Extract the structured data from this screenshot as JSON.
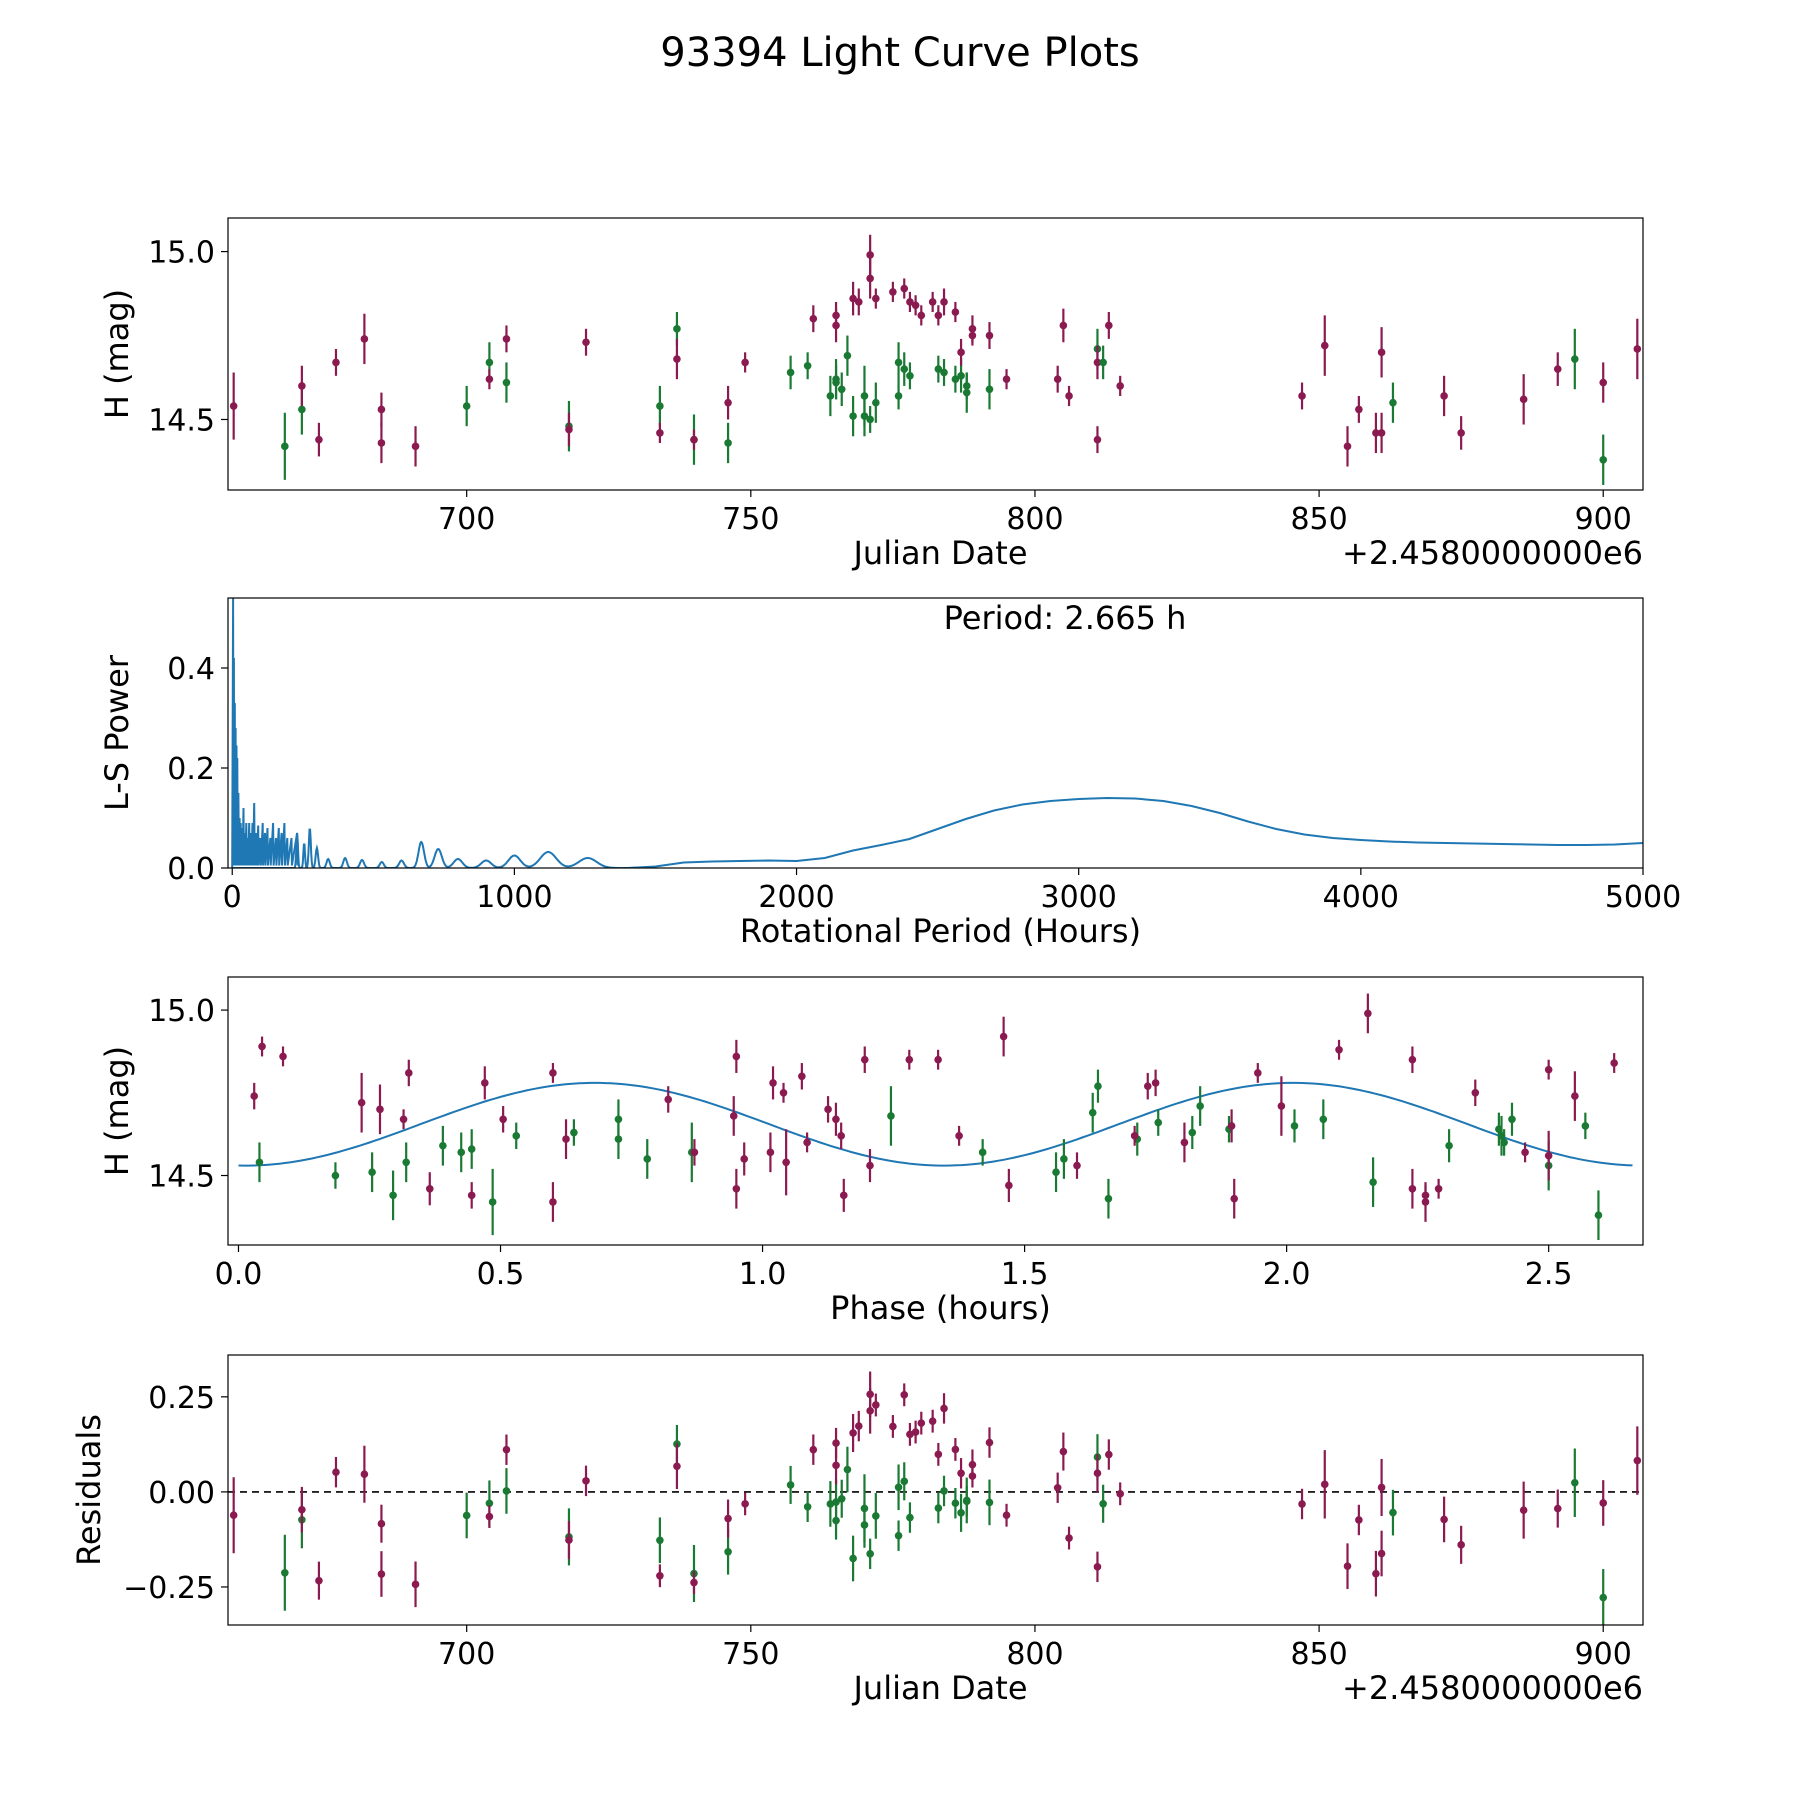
{
  "chart_data": {
    "title": "93394 Light Curve Plots",
    "colors": {
      "filter_a": "#8b1a50",
      "filter_b": "#1a7a34",
      "model": "#1f77b4",
      "axes": "#000000"
    },
    "panels": [
      {
        "id": "lightcurve",
        "type": "scatter",
        "xlabel": "Julian Date",
        "ylabel": "H (mag)",
        "offset_label": "+2.4580000000e6",
        "xlim": [
          658,
          907
        ],
        "ylim": [
          14.29,
          15.1
        ],
        "xticks": [
          700,
          750,
          800,
          850,
          900
        ],
        "yticks": [
          14.5,
          15.0
        ],
        "ytick_labels": [
          "14.5",
          "15.0"
        ]
      },
      {
        "id": "periodogram",
        "type": "line",
        "xlabel": "Rotational Period (Hours)",
        "ylabel": "L-S Power",
        "annotation": "Period: 2.665 h",
        "xlim": [
          -15,
          5000
        ],
        "ylim": [
          0,
          0.54
        ],
        "xticks": [
          0,
          1000,
          2000,
          3000,
          4000,
          5000
        ],
        "yticks": [
          0.0,
          0.2,
          0.4
        ],
        "ytick_labels": [
          "0.0",
          "0.2",
          "0.4"
        ],
        "curve": {
          "x": [
            1400,
            1500,
            1600,
            1700,
            1800,
            1900,
            2000,
            2100,
            2200,
            2300,
            2400,
            2500,
            2600,
            2700,
            2800,
            2900,
            3000,
            3100,
            3200,
            3300,
            3400,
            3500,
            3600,
            3700,
            3800,
            3900,
            4000,
            4100,
            4200,
            4300,
            4400,
            4500,
            4600,
            4700,
            4800,
            4900,
            5000
          ],
          "y": [
            0.0,
            0.003,
            0.011,
            0.013,
            0.014,
            0.015,
            0.014,
            0.02,
            0.035,
            0.046,
            0.058,
            0.078,
            0.098,
            0.115,
            0.127,
            0.134,
            0.138,
            0.14,
            0.139,
            0.134,
            0.124,
            0.11,
            0.093,
            0.078,
            0.067,
            0.06,
            0.056,
            0.053,
            0.051,
            0.05,
            0.049,
            0.048,
            0.047,
            0.046,
            0.046,
            0.047,
            0.05
          ]
        },
        "bumps": [
          {
            "center": 1260,
            "height": 0.02,
            "width": 45
          },
          {
            "center": 1120,
            "height": 0.032,
            "width": 40
          },
          {
            "center": 1000,
            "height": 0.025,
            "width": 30
          },
          {
            "center": 900,
            "height": 0.015,
            "width": 25
          },
          {
            "center": 800,
            "height": 0.018,
            "width": 22
          },
          {
            "center": 730,
            "height": 0.038,
            "width": 18
          },
          {
            "center": 670,
            "height": 0.052,
            "width": 14
          },
          {
            "center": 600,
            "height": 0.015,
            "width": 12
          },
          {
            "center": 530,
            "height": 0.012,
            "width": 10
          },
          {
            "center": 460,
            "height": 0.016,
            "width": 10
          },
          {
            "center": 400,
            "height": 0.02,
            "width": 9
          },
          {
            "center": 340,
            "height": 0.018,
            "width": 8
          },
          {
            "center": 300,
            "height": 0.04,
            "width": 6
          },
          {
            "center": 275,
            "height": 0.08,
            "width": 5
          },
          {
            "center": 255,
            "height": 0.05,
            "width": 4
          },
          {
            "center": 230,
            "height": 0.07,
            "width": 4
          }
        ],
        "spikes": [
          [
            3,
            0.54
          ],
          [
            6,
            0.42
          ],
          [
            9,
            0.33
          ],
          [
            12,
            0.28
          ],
          [
            15,
            0.245
          ],
          [
            18,
            0.22
          ],
          [
            22,
            0.15
          ],
          [
            26,
            0.1
          ],
          [
            30,
            0.09
          ],
          [
            35,
            0.08
          ],
          [
            40,
            0.12
          ],
          [
            45,
            0.07
          ],
          [
            50,
            0.09
          ],
          [
            55,
            0.06
          ],
          [
            60,
            0.09
          ],
          [
            66,
            0.07
          ],
          [
            72,
            0.09
          ],
          [
            78,
            0.13
          ],
          [
            85,
            0.07
          ],
          [
            92,
            0.085
          ],
          [
            100,
            0.06
          ],
          [
            108,
            0.09
          ],
          [
            116,
            0.07
          ],
          [
            125,
            0.08
          ],
          [
            135,
            0.06
          ],
          [
            145,
            0.09
          ],
          [
            155,
            0.06
          ],
          [
            165,
            0.08
          ],
          [
            175,
            0.07
          ],
          [
            185,
            0.09
          ],
          [
            195,
            0.06
          ],
          [
            210,
            0.06
          ],
          [
            230,
            0.07
          ]
        ]
      },
      {
        "id": "phased",
        "type": "scatter",
        "xlabel": "Phase (hours)",
        "ylabel": "H (mag)",
        "xlim": [
          -0.02,
          2.68
        ],
        "ylim": [
          14.29,
          15.1
        ],
        "xticks": [
          0.0,
          0.5,
          1.0,
          1.5,
          2.0,
          2.5
        ],
        "xtick_labels": [
          "0.0",
          "0.5",
          "1.0",
          "1.5",
          "2.0",
          "2.5"
        ],
        "yticks": [
          14.5,
          15.0
        ],
        "ytick_labels": [
          "14.5",
          "15.0"
        ],
        "model": {
          "mean": 14.655,
          "amplitude": 0.125,
          "period": 1.3325,
          "phase_of_max": 0.68,
          "x_start": 0.0,
          "x_end": 2.665
        }
      },
      {
        "id": "residuals",
        "type": "scatter",
        "xlabel": "Julian Date",
        "ylabel": "Residuals",
        "offset_label": "+2.4580000000e6",
        "xlim": [
          658,
          907
        ],
        "ylim": [
          -0.35,
          0.36
        ],
        "xticks": [
          700,
          750,
          800,
          850,
          900
        ],
        "yticks": [
          0.25,
          0.0,
          -0.25
        ],
        "ytick_labels": [
          "0.25",
          "0.00",
          "−0.25"
        ],
        "zero_line": 0
      }
    ],
    "observations": {
      "jd": [
        659,
        668,
        671,
        671,
        674,
        677,
        682,
        685,
        685,
        691,
        700,
        704,
        704,
        707,
        707,
        718,
        718,
        721,
        734,
        734,
        737,
        737,
        740,
        740,
        746,
        746,
        749,
        757,
        760,
        761,
        764,
        765,
        765,
        765,
        765,
        766,
        767,
        768,
        768,
        769,
        770,
        770,
        771,
        771,
        771,
        772,
        772,
        775,
        776,
        776,
        777,
        777,
        778,
        778,
        779,
        780,
        782,
        783,
        783,
        784,
        784,
        786,
        786,
        787,
        787,
        788,
        788,
        789,
        789,
        792,
        792,
        795,
        804,
        805,
        806,
        811,
        811,
        811,
        812,
        813,
        815,
        847,
        851,
        855,
        857,
        860,
        861,
        861,
        863,
        872,
        875,
        886,
        892,
        895,
        900,
        900,
        906
      ],
      "filter": [
        "a",
        "b",
        "b",
        "a",
        "a",
        "a",
        "a",
        "a",
        "a",
        "a",
        "b",
        "b",
        "a",
        "b",
        "a",
        "b",
        "a",
        "a",
        "b",
        "a",
        "b",
        "a",
        "b",
        "a",
        "b",
        "a",
        "a",
        "b",
        "b",
        "a",
        "b",
        "b",
        "b",
        "a",
        "a",
        "b",
        "b",
        "a",
        "b",
        "a",
        "b",
        "b",
        "b",
        "a",
        "a",
        "b",
        "a",
        "a",
        "b",
        "b",
        "a",
        "b",
        "a",
        "b",
        "a",
        "a",
        "a",
        "a",
        "b",
        "b",
        "a",
        "b",
        "a",
        "b",
        "a",
        "b",
        "b",
        "a",
        "a",
        "b",
        "a",
        "a",
        "a",
        "a",
        "a",
        "b",
        "a",
        "a",
        "b",
        "a",
        "a",
        "a",
        "a",
        "a",
        "a",
        "a",
        "a",
        "a",
        "b",
        "a",
        "a",
        "a",
        "a",
        "b",
        "a",
        "b",
        "a"
      ],
      "mag": [
        14.54,
        14.42,
        14.53,
        14.6,
        14.44,
        14.67,
        14.74,
        14.43,
        14.53,
        14.42,
        14.54,
        14.67,
        14.62,
        14.61,
        14.74,
        14.48,
        14.47,
        14.73,
        14.54,
        14.46,
        14.77,
        14.68,
        14.44,
        14.44,
        14.43,
        14.55,
        14.67,
        14.64,
        14.66,
        14.8,
        14.57,
        14.62,
        14.61,
        14.78,
        14.81,
        14.59,
        14.69,
        14.86,
        14.51,
        14.85,
        14.51,
        14.57,
        14.5,
        14.99,
        14.92,
        14.55,
        14.86,
        14.88,
        14.57,
        14.67,
        14.89,
        14.65,
        14.85,
        14.63,
        14.84,
        14.81,
        14.85,
        14.81,
        14.65,
        14.64,
        14.85,
        14.62,
        14.82,
        14.63,
        14.7,
        14.58,
        14.6,
        14.77,
        14.75,
        14.59,
        14.75,
        14.62,
        14.62,
        14.78,
        14.57,
        14.71,
        14.67,
        14.44,
        14.67,
        14.78,
        14.6,
        14.57,
        14.72,
        14.42,
        14.53,
        14.46,
        14.7,
        14.46,
        14.55,
        14.57,
        14.46,
        14.56,
        14.65,
        14.68,
        14.61,
        14.38,
        14.71
      ],
      "err": [
        0.2,
        0.2,
        0.15,
        0.12,
        0.1,
        0.08,
        0.15,
        0.12,
        0.1,
        0.12,
        0.12,
        0.12,
        0.06,
        0.12,
        0.08,
        0.15,
        0.1,
        0.08,
        0.12,
        0.06,
        0.1,
        0.12,
        0.15,
        0.06,
        0.12,
        0.1,
        0.06,
        0.1,
        0.08,
        0.08,
        0.12,
        0.12,
        0.1,
        0.1,
        0.08,
        0.1,
        0.12,
        0.1,
        0.12,
        0.08,
        0.12,
        0.18,
        0.08,
        0.12,
        0.12,
        0.12,
        0.06,
        0.06,
        0.08,
        0.12,
        0.06,
        0.1,
        0.06,
        0.08,
        0.06,
        0.06,
        0.06,
        0.06,
        0.08,
        0.08,
        0.08,
        0.08,
        0.06,
        0.1,
        0.08,
        0.12,
        0.08,
        0.08,
        0.06,
        0.12,
        0.08,
        0.06,
        0.08,
        0.1,
        0.06,
        0.12,
        0.1,
        0.08,
        0.1,
        0.08,
        0.06,
        0.08,
        0.18,
        0.12,
        0.08,
        0.12,
        0.15,
        0.12,
        0.12,
        0.12,
        0.1,
        0.15,
        0.1,
        0.18,
        0.12,
        0.15,
        0.18
      ]
    }
  }
}
